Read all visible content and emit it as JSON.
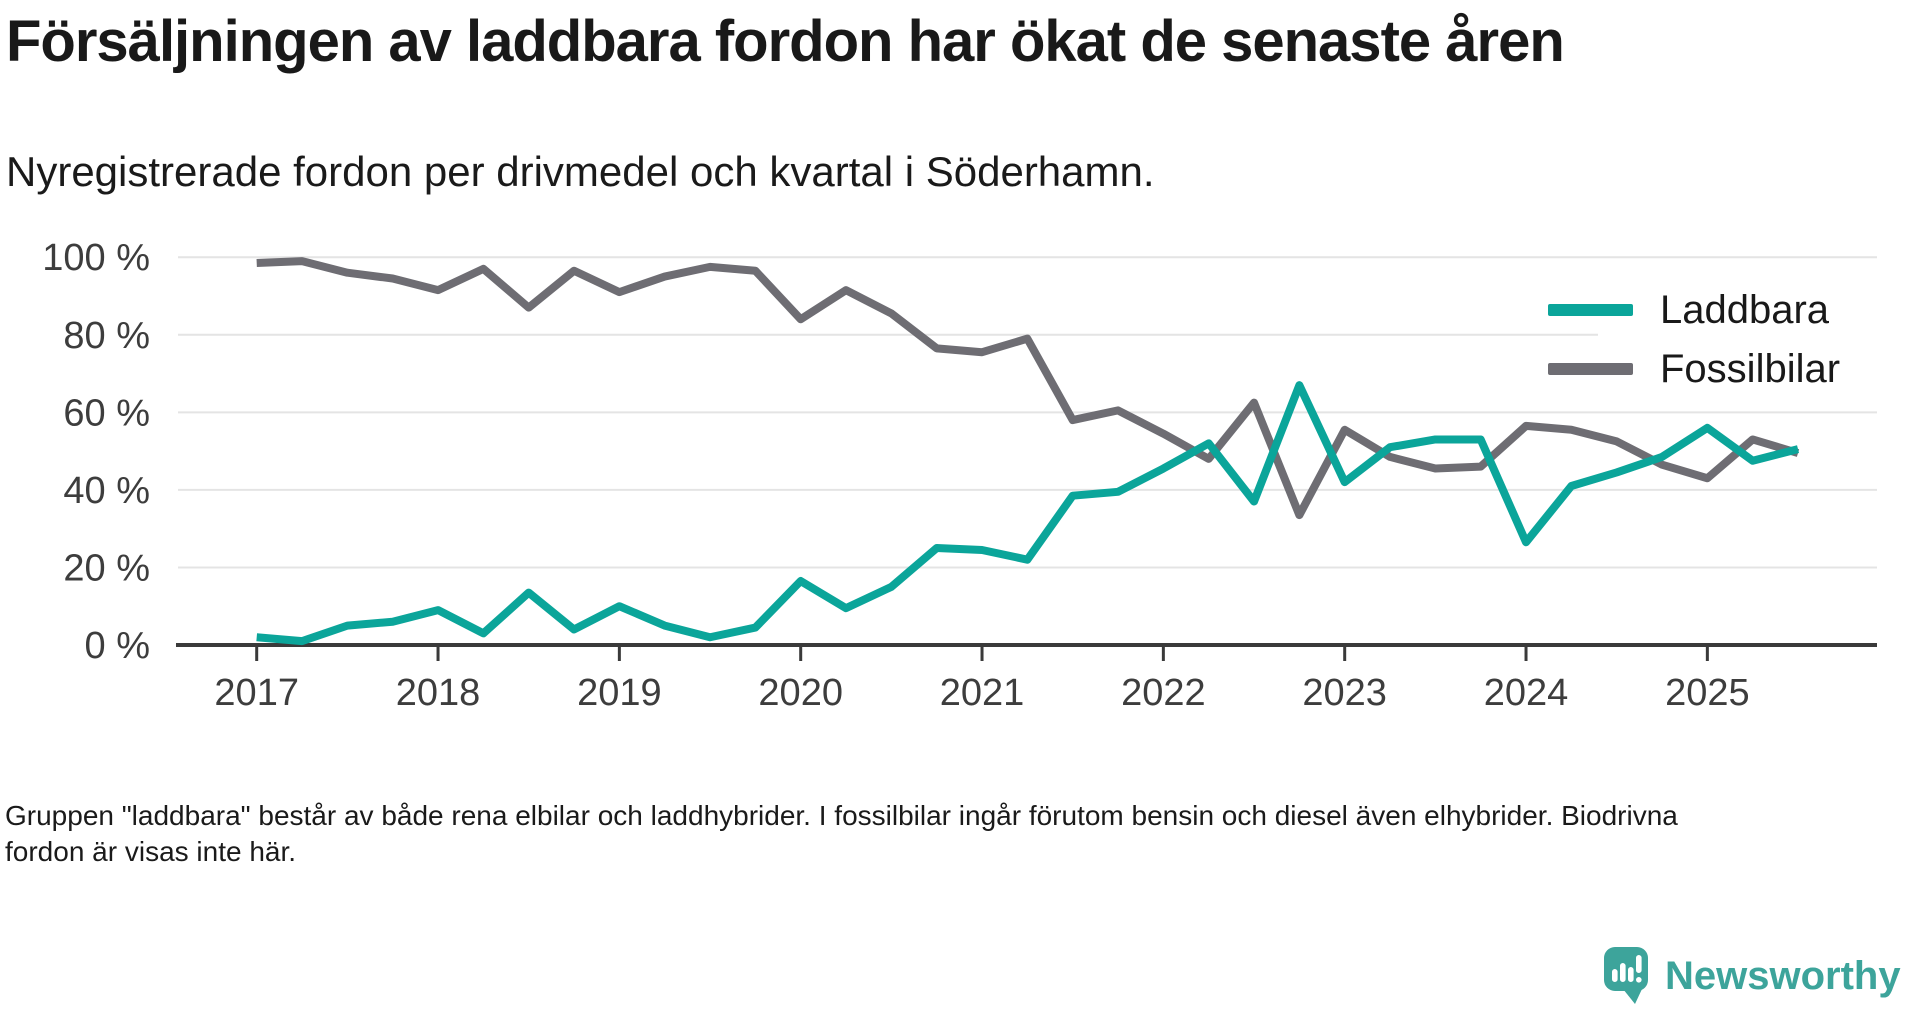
{
  "chart_data": {
    "type": "line",
    "title": "Försäljningen av laddbara fordon har ökat de senaste åren",
    "subtitle": "Nyregistrerade fordon per drivmedel och kvartal i Söderhamn.",
    "x_unit": "quarter",
    "quarters": [
      "2017 Q1",
      "2017 Q2",
      "2017 Q3",
      "2017 Q4",
      "2018 Q1",
      "2018 Q2",
      "2018 Q3",
      "2018 Q4",
      "2019 Q1",
      "2019 Q2",
      "2019 Q3",
      "2019 Q4",
      "2020 Q1",
      "2020 Q2",
      "2020 Q3",
      "2020 Q4",
      "2021 Q1",
      "2021 Q2",
      "2021 Q3",
      "2021 Q4",
      "2022 Q1",
      "2022 Q2",
      "2022 Q3",
      "2022 Q4",
      "2023 Q1",
      "2023 Q2",
      "2023 Q3",
      "2023 Q4",
      "2024 Q1",
      "2024 Q2",
      "2024 Q3",
      "2024 Q4",
      "2025 Q1",
      "2025 Q2",
      "2025 Q3"
    ],
    "series": [
      {
        "name": "Laddbara",
        "color": "#0ba59a",
        "values": [
          2,
          1,
          5,
          6,
          9,
          3,
          13.5,
          4,
          10,
          5,
          2,
          4.5,
          16.5,
          9.5,
          15,
          25,
          24.5,
          22,
          38.5,
          39.5,
          45.5,
          52,
          37,
          67,
          42,
          51,
          53,
          53,
          26.5,
          41,
          44.5,
          48.5,
          56,
          47.5,
          50.5
        ]
      },
      {
        "name": "Fossilbilar",
        "color": "#6e6d73",
        "values": [
          98.5,
          99,
          96,
          94.5,
          91.5,
          97,
          87,
          96.5,
          91,
          95,
          97.5,
          96.5,
          84,
          91.5,
          85.5,
          76.5,
          75.5,
          79,
          58,
          60.5,
          54.5,
          48,
          62.5,
          33.5,
          55.5,
          48.5,
          45.5,
          46,
          56.5,
          55.5,
          52.5,
          46.5,
          43,
          53,
          49.5
        ]
      }
    ],
    "y_tick_values": [
      100,
      80,
      60,
      40,
      20,
      0
    ],
    "y_tick_labels": [
      "100 %",
      "80 %",
      "60 %",
      "40 %",
      "20 %",
      "0 %"
    ],
    "x_tick_labels": [
      "2017",
      "2018",
      "2019",
      "2020",
      "2021",
      "2022",
      "2023",
      "2024",
      "2025"
    ],
    "ylim": [
      0,
      100
    ],
    "grid": true,
    "legend_position": "top-right",
    "colors": {
      "grid": "#e4e4e4",
      "axis": "#3a3a3a",
      "tick_label": "#3d3d3d"
    }
  },
  "footer": {
    "note": "Gruppen \"laddbara\" består av både rena elbilar och laddhybrider. I fossilbilar ingår förutom bensin och diesel även elhybrider. Biodrivna fordon är visas inte här."
  },
  "branding": {
    "logo_text": "Newsworthy",
    "logo_color": "#3da49b"
  }
}
